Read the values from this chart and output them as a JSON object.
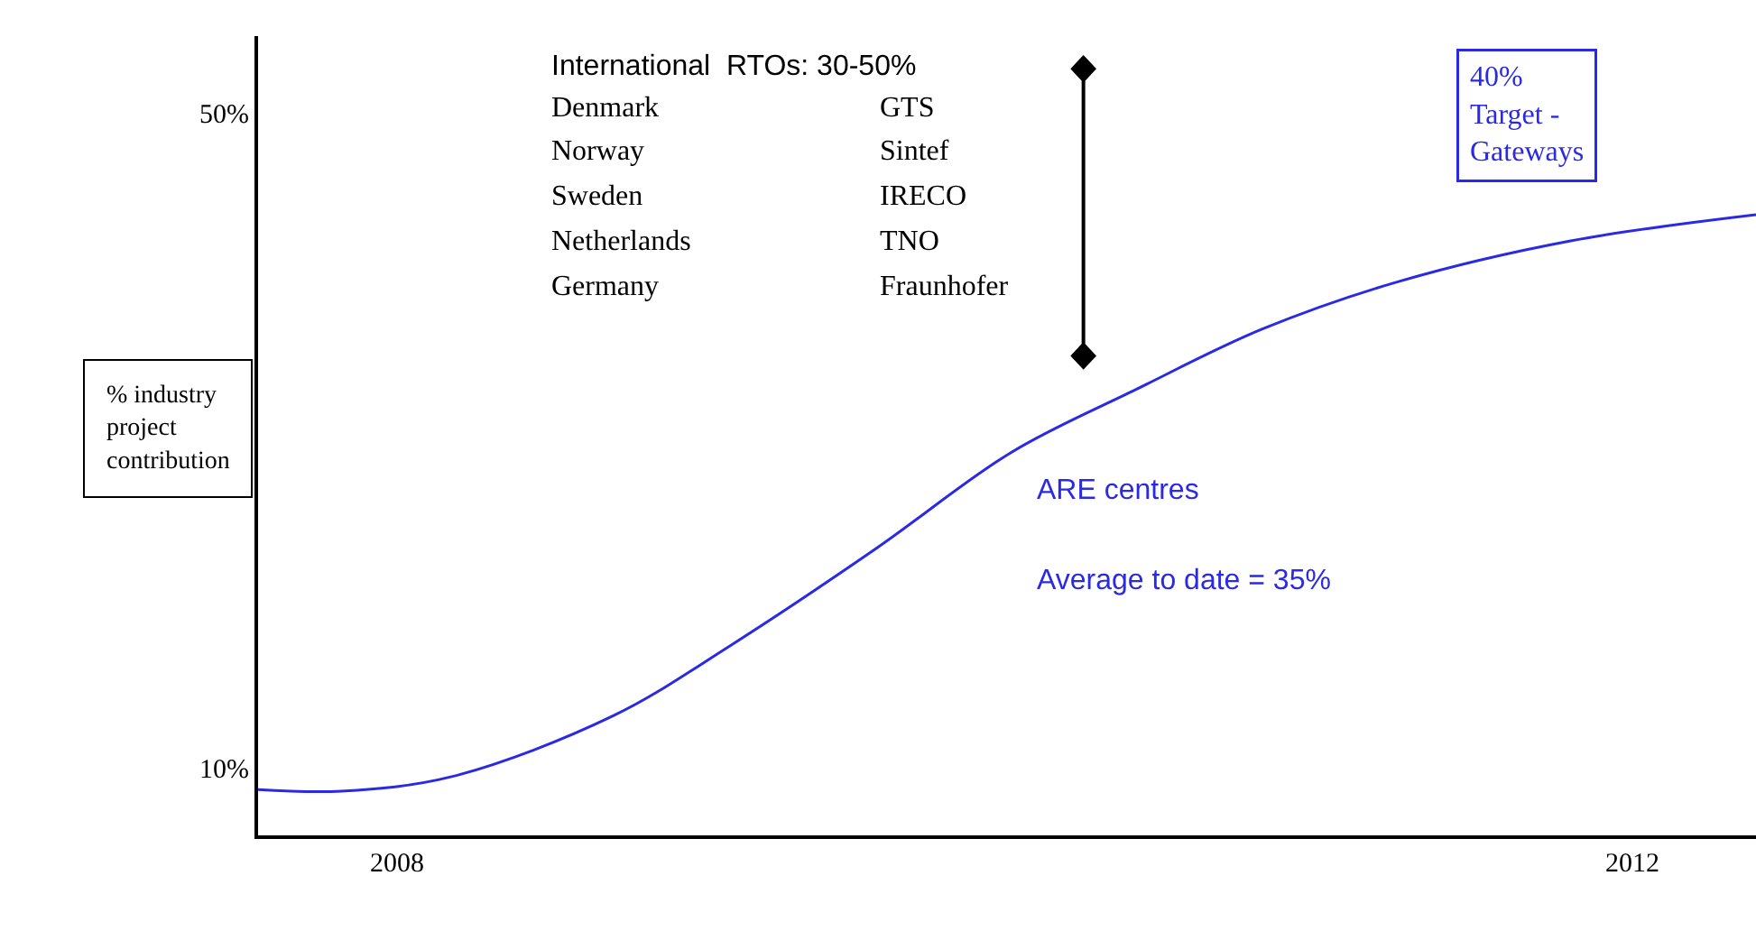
{
  "chart_data": {
    "type": "line",
    "ylabel": "% industry project contribution",
    "x": [
      2007.55,
      2007.82,
      2008.18,
      2008.7,
      2009.08,
      2009.55,
      2009.99,
      2010.39,
      2010.8,
      2011.24,
      2011.8,
      2012.4
    ],
    "series": [
      {
        "color": "#2a2ae6",
        "values": [
          8.7,
          8.6,
          9.5,
          13.2,
          17.5,
          23.4,
          29.3,
          33.1,
          36.8,
          39.7,
          42.2,
          43.8
        ]
      }
    ],
    "xlim": [
      2007.55,
      2012.4
    ],
    "xticks": [
      2008,
      2012
    ],
    "ylim": [
      5.9,
      54.7
    ],
    "yticks": [
      {
        "value": 10,
        "label": "10%"
      },
      {
        "value": 50,
        "label": "50%"
      }
    ],
    "annotations": [
      "International  RTOs: 30-50%",
      "Denmark",
      "GTS",
      "Norway",
      "Sintef",
      "Sweden",
      "IRECO",
      "Netherlands",
      "TNO",
      "Germany",
      "Fraunhofer",
      "ARE centres",
      "Average to date = 35%",
      "40% Target - Gateways"
    ],
    "marker": "none",
    "line_style": "solid"
  }
}
